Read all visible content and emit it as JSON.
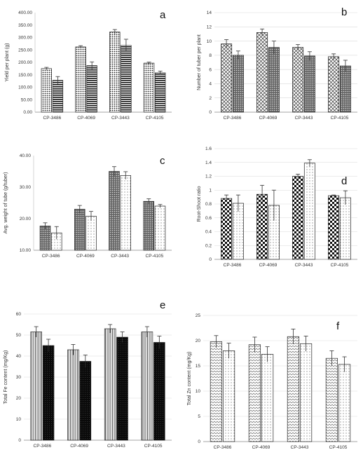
{
  "chart_data": [
    {
      "type": "bar",
      "panel_label": "a",
      "title": "",
      "xlabel": "",
      "ylabel": "Yield per plant (g)",
      "categories": [
        "CP-3486",
        "CP-4069",
        "CP-3443",
        "CP-4105"
      ],
      "series": [
        {
          "values": [
            175,
            262,
            322,
            197
          ],
          "errors": [
            5,
            5,
            10,
            4
          ],
          "pattern": "dots"
        },
        {
          "values": [
            128,
            187,
            268,
            158
          ],
          "errors": [
            15,
            15,
            25,
            7
          ],
          "pattern": "hlines"
        }
      ],
      "ylim": [
        0,
        400
      ],
      "yticks": [
        "0.00",
        "50.00",
        "100.00",
        "150.00",
        "200.00",
        "250.00",
        "300.00",
        "350.00",
        "400.00"
      ],
      "grid": false
    },
    {
      "type": "bar",
      "panel_label": "b",
      "title": "",
      "xlabel": "",
      "ylabel": "Number of tuber per plant",
      "categories": [
        "CP-3486",
        "CP-4069",
        "CP-3443",
        "CP-4105"
      ],
      "series": [
        {
          "values": [
            9.6,
            11.2,
            9.1,
            7.8
          ],
          "errors": [
            0.6,
            0.5,
            0.4,
            0.4
          ],
          "pattern": "crosshatch"
        },
        {
          "values": [
            8.0,
            9.1,
            7.9,
            6.5
          ],
          "errors": [
            0.6,
            0.9,
            0.6,
            0.8
          ],
          "pattern": "dense"
        }
      ],
      "ylim": [
        0,
        14
      ],
      "yticks": [
        "0",
        "2",
        "4",
        "6",
        "8",
        "10",
        "12",
        "14"
      ],
      "grid": true
    },
    {
      "type": "bar",
      "panel_label": "c",
      "title": "",
      "xlabel": "",
      "ylabel": "Avg. weight of tube (g/tuber)",
      "categories": [
        "CP-3486",
        "CP-4069",
        "CP-3443",
        "CP-4105"
      ],
      "series": [
        {
          "values": [
            17.7,
            23.0,
            35.0,
            25.5
          ],
          "errors": [
            1.0,
            1.2,
            1.5,
            0.8
          ],
          "pattern": "dense"
        },
        {
          "values": [
            15.5,
            20.8,
            33.7,
            24.0
          ],
          "errors": [
            2.0,
            1.5,
            1.2,
            0.5
          ],
          "pattern": "sparse"
        }
      ],
      "ylim": [
        10,
        40
      ],
      "yticks": [
        "10.00",
        "20.00",
        "30.00",
        "40.00"
      ],
      "grid": false
    },
    {
      "type": "bar",
      "panel_label": "d",
      "title": "",
      "xlabel": "",
      "ylabel": "Root-Shoot ratio",
      "categories": [
        "CP-3486",
        "CP-4069",
        "CP-3443",
        "CP-4105"
      ],
      "series": [
        {
          "values": [
            0.88,
            0.94,
            1.2,
            0.92
          ],
          "errors": [
            0.05,
            0.13,
            0.03,
            0.01
          ],
          "pattern": "checker"
        },
        {
          "values": [
            0.81,
            0.78,
            1.39,
            0.89
          ],
          "errors": [
            0.12,
            0.22,
            0.05,
            0.1
          ],
          "pattern": "sparse"
        }
      ],
      "ylim": [
        0,
        1.6
      ],
      "yticks": [
        "0",
        "0.2",
        "0.4",
        "0.6",
        "0.8",
        "1",
        "1.2",
        "1.4",
        "1.6"
      ],
      "grid": true
    },
    {
      "type": "bar",
      "panel_label": "e",
      "title": "",
      "xlabel": "",
      "ylabel": "Total Fe content (mg/Kg)",
      "categories": [
        "CP-3486",
        "CP-4069",
        "CP-3443",
        "CP-4105"
      ],
      "series": [
        {
          "values": [
            51.5,
            43.0,
            53.0,
            51.5
          ],
          "errors": [
            2.5,
            2.5,
            2.0,
            2.5
          ],
          "pattern": "vlines"
        },
        {
          "values": [
            45.0,
            37.5,
            49.0,
            46.5
          ],
          "errors": [
            3.0,
            3.0,
            2.5,
            3.0
          ],
          "pattern": "black"
        }
      ],
      "ylim": [
        0,
        60
      ],
      "yticks": [
        "0",
        "10",
        "20",
        "30",
        "40",
        "50",
        "60"
      ],
      "grid": true
    },
    {
      "type": "bar",
      "panel_label": "f",
      "title": "",
      "xlabel": "",
      "ylabel": "Total Zn content (mg/Kg)",
      "categories": [
        "CP-3486",
        "CP-4069",
        "CP-3443",
        "CP-4105"
      ],
      "series": [
        {
          "values": [
            19.8,
            19.2,
            20.8,
            16.5
          ],
          "errors": [
            1.2,
            1.5,
            1.5,
            1.5
          ],
          "pattern": "zigzag"
        },
        {
          "values": [
            18.0,
            17.3,
            19.4,
            15.3
          ],
          "errors": [
            1.5,
            1.5,
            1.5,
            1.5
          ],
          "pattern": "sparse"
        }
      ],
      "ylim": [
        0,
        25
      ],
      "yticks": [
        "0",
        "5",
        "10",
        "15",
        "20",
        "25"
      ],
      "grid": true
    }
  ]
}
